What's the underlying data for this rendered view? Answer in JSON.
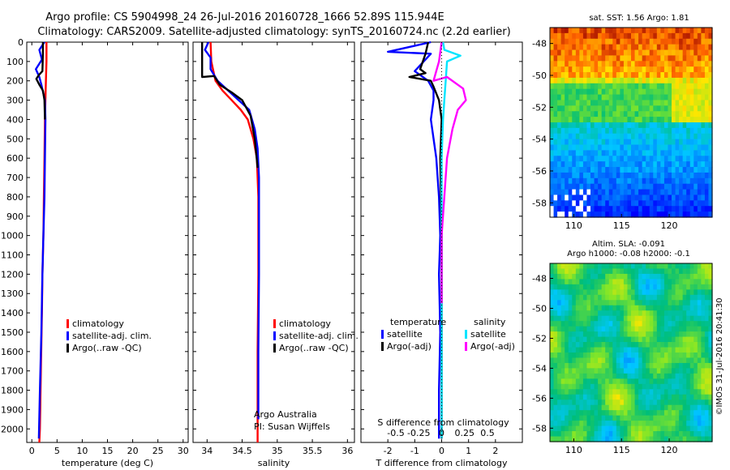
{
  "header": {
    "line1": "Argo profile: CS 5904998_24 26-Jul-2016 20160728_1666 52.89S 115.944E",
    "line2": "Climatology: CARS2009. Satellite-adjusted climatology: synTS_20160724.nc (2.2d earlier)"
  },
  "colors": {
    "climatology": "#ff0000",
    "satellite": "#0000ff",
    "argo": "#000000",
    "sal_satellite": "#00e5ff",
    "sal_argo": "#ff00ff"
  },
  "depth_ticks": [
    "0",
    "100",
    "200",
    "300",
    "400",
    "500",
    "600",
    "700",
    "800",
    "900",
    "1000",
    "1100",
    "1200",
    "1300",
    "1400",
    "1500",
    "1600",
    "1700",
    "1800",
    "1900",
    "2000"
  ],
  "chart_data": [
    {
      "type": "line",
      "id": "temperature",
      "xlabel": "temperature (deg C)",
      "xlim": [
        -1,
        31
      ],
      "ylim": [
        2070,
        0
      ],
      "xticks": [
        "0",
        "5",
        "10",
        "15",
        "20",
        "25",
        "30"
      ],
      "xtick_values": [
        0,
        5,
        10,
        15,
        20,
        25,
        30
      ],
      "legend": [
        "climatology",
        "satellite-adj. clim.",
        "Argo(..raw -QC)"
      ],
      "series": [
        {
          "name": "climatology",
          "color": "#ff0000",
          "x": [
            2.9,
            2.9,
            2.8,
            2.7,
            2.6,
            2.5,
            2.4,
            2.3,
            2.1,
            2.0,
            1.8,
            1.6,
            1.5
          ],
          "y": [
            0,
            100,
            200,
            300,
            400,
            600,
            800,
            1000,
            1200,
            1400,
            1700,
            2000,
            2070
          ]
        },
        {
          "name": "satellite-adj. clim.",
          "color": "#0000ff",
          "x": [
            2.5,
            1.5,
            2.0,
            0.8,
            1.5,
            1.9,
            2.6,
            2.7,
            2.6,
            2.5,
            2.3,
            2.1,
            1.9,
            1.6,
            1.4
          ],
          "y": [
            0,
            40,
            90,
            140,
            180,
            220,
            300,
            400,
            600,
            800,
            1000,
            1200,
            1500,
            1800,
            2050
          ]
        },
        {
          "name": "Argo(..raw -QC)",
          "color": "#000000",
          "x": [
            2.2,
            2.2,
            2.1,
            1.4,
            0.9,
            1.5,
            2.2,
            2.5,
            2.6
          ],
          "y": [
            0,
            60,
            150,
            170,
            190,
            220,
            250,
            300,
            400
          ]
        }
      ]
    },
    {
      "type": "line",
      "id": "salinity",
      "xlabel": "salinity",
      "xlim": [
        33.8,
        36.1
      ],
      "ylim": [
        2070,
        0
      ],
      "xticks": [
        "34",
        "34.5",
        "35",
        "35.5",
        "36"
      ],
      "xtick_values": [
        34,
        34.5,
        35,
        35.5,
        36
      ],
      "legend": [
        "climatology",
        "satellite-adj. clim.",
        "Argo(..raw -QC)"
      ],
      "annotation": [
        "Argo Australia",
        "PI: Susan Wijffels"
      ],
      "series": [
        {
          "name": "climatology",
          "color": "#ff0000",
          "x": [
            34.05,
            34.06,
            34.12,
            34.22,
            34.35,
            34.48,
            34.58,
            34.66,
            34.71,
            34.73,
            34.73,
            34.73,
            34.72,
            34.72
          ],
          "y": [
            0,
            100,
            200,
            250,
            300,
            350,
            400,
            500,
            600,
            800,
            1000,
            1200,
            1600,
            2070
          ]
        },
        {
          "name": "satellite-adj. clim.",
          "color": "#0000ff",
          "x": [
            34.02,
            33.97,
            34.05,
            34.05,
            34.15,
            34.3,
            34.45,
            34.6,
            34.68,
            34.72,
            34.74,
            34.74,
            34.74,
            34.73,
            34.73
          ],
          "y": [
            0,
            40,
            80,
            140,
            200,
            250,
            300,
            350,
            450,
            550,
            700,
            900,
            1200,
            1600,
            1950
          ]
        },
        {
          "name": "Argo(..raw -QC)",
          "color": "#000000",
          "x": [
            33.93,
            33.93,
            33.93,
            34.1,
            34.18,
            34.35,
            34.5,
            34.62,
            34.68,
            34.72
          ],
          "y": [
            0,
            100,
            180,
            175,
            220,
            260,
            300,
            380,
            500,
            650
          ]
        }
      ]
    },
    {
      "type": "line",
      "id": "difference",
      "xlabel": "T difference from climatology",
      "top_label": "S difference from climatology",
      "xlim": [
        -3,
        3
      ],
      "ylim": [
        2070,
        0
      ],
      "xticks": [
        "-2",
        "-1",
        "0",
        "1",
        "2"
      ],
      "xtick_values": [
        -2,
        -1,
        0,
        1,
        2
      ],
      "sticks": [
        "-0.5",
        "-0.25",
        "0",
        "0.25",
        "0.5"
      ],
      "stick_values": [
        -0.5,
        -0.25,
        0,
        0.25,
        0.5
      ],
      "legend_temperature": [
        "temperature",
        "satellite",
        "Argo(-adj)"
      ],
      "legend_salinity": [
        "salinity",
        "satellite",
        "Argo(-adj)"
      ],
      "series": [
        {
          "name": "temperature satellite",
          "color": "#0000ff",
          "x": [
            -0.4,
            -2.0,
            -0.4,
            -1.0,
            -0.5,
            -0.3,
            -0.3,
            -0.4,
            -0.2,
            -0.1,
            -0.05,
            -0.1,
            -0.05,
            -0.1,
            -0.1
          ],
          "y": [
            0,
            50,
            60,
            150,
            200,
            250,
            300,
            400,
            600,
            800,
            1000,
            1200,
            1500,
            1800,
            2050
          ]
        },
        {
          "name": "temperature Argo(-adj)",
          "color": "#000000",
          "x": [
            -0.5,
            -0.6,
            -0.8,
            -0.6,
            -1.2,
            -0.4,
            -0.3,
            -0.1,
            0.0,
            -0.05,
            0.0,
            0.0
          ],
          "y": [
            0,
            60,
            140,
            160,
            180,
            200,
            230,
            300,
            400,
            600,
            1000,
            2050
          ]
        },
        {
          "name": "salinity satellite",
          "color": "#00e5ff",
          "x": [
            0.05,
            0.1,
            0.7,
            0.2,
            0.15,
            0.1,
            0.05,
            0.0,
            0.0,
            0.0
          ],
          "y": [
            0,
            40,
            70,
            100,
            200,
            300,
            400,
            600,
            1000,
            2050
          ]
        },
        {
          "name": "salinity Argo(-adj)",
          "color": "#ff00ff",
          "x": [
            0.0,
            -0.1,
            -0.3,
            0.2,
            0.8,
            0.9,
            0.6,
            0.4,
            0.2,
            0.1,
            0.0,
            0.0
          ],
          "y": [
            0,
            100,
            200,
            180,
            240,
            300,
            350,
            450,
            600,
            800,
            1000,
            1350
          ]
        }
      ]
    },
    {
      "type": "heatmap",
      "id": "sst_map",
      "title": "sat. SST: 1.56 Argo: 1.81",
      "xticks": [
        "110",
        "115",
        "120"
      ],
      "xtick_values": [
        110,
        115,
        120
      ],
      "yticks": [
        "-48",
        "-50",
        "-52",
        "-54",
        "-56",
        "-58"
      ],
      "ytick_values": [
        -48,
        -50,
        -52,
        -54,
        -56,
        -58
      ],
      "xlim": [
        107.5,
        124.5
      ],
      "ylim": [
        -58.9,
        -47
      ]
    },
    {
      "type": "heatmap",
      "id": "sla_map",
      "title": [
        "Altim. SLA: -0.091",
        "Argo h1000: -0.08 h2000: -0.1"
      ],
      "xticks": [
        "110",
        "115",
        "120"
      ],
      "xtick_values": [
        110,
        115,
        120
      ],
      "yticks": [
        "-48",
        "-50",
        "-52",
        "-54",
        "-56",
        "-58"
      ],
      "ytick_values": [
        -48,
        -50,
        -52,
        -54,
        -56,
        -58
      ],
      "xlim": [
        107.5,
        124.5
      ],
      "ylim": [
        -58.9,
        -47
      ]
    }
  ],
  "credit": "©IMOS 31-Jul-2016 20:41:30"
}
